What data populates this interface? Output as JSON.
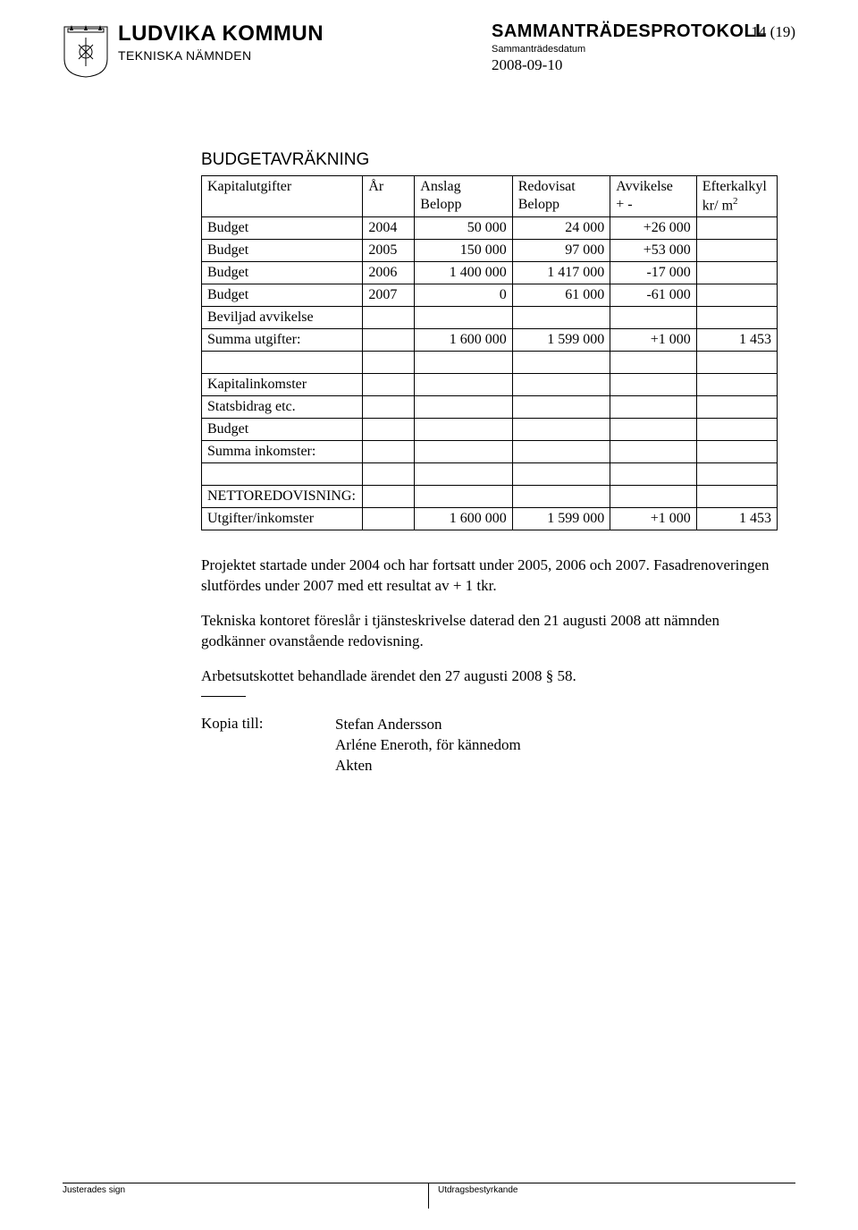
{
  "header": {
    "org_name": "LUDVIKA KOMMUN",
    "dept_name": "TEKNISKA NÄMNDEN",
    "doc_title": "SAMMANTRÄDESPROTOKOLL",
    "doc_subtitle": "Sammanträdesdatum",
    "doc_date": "2008-09-10",
    "page_num": "14 (19)"
  },
  "section_title": "BUDGETAVRÄKNING",
  "table": {
    "headers": {
      "label": "Kapitalutgifter",
      "year": "År",
      "anslag_l1": "Anslag",
      "anslag_l2": "Belopp",
      "redov_l1": "Redovisat",
      "redov_l2": "Belopp",
      "avvik_l1": "Avvikelse",
      "avvik_l2": "+ -",
      "efter_l1": "Efterkalkyl",
      "efter_l2_a": "kr/ m",
      "efter_l2_b": "2"
    },
    "rows": [
      {
        "label": "Budget",
        "year": "2004",
        "anslag": "50 000",
        "redov": "24 000",
        "avvik": "+26 000",
        "efter": ""
      },
      {
        "label": "Budget",
        "year": "2005",
        "anslag": "150 000",
        "redov": "97 000",
        "avvik": "+53 000",
        "efter": ""
      },
      {
        "label": "Budget",
        "year": "2006",
        "anslag": "1 400 000",
        "redov": "1 417 000",
        "avvik": "-17 000",
        "efter": ""
      },
      {
        "label": "Budget",
        "year": "2007",
        "anslag": "0",
        "redov": "61 000",
        "avvik": "-61 000",
        "efter": ""
      },
      {
        "label": "Beviljad avvikelse",
        "year": "",
        "anslag": "",
        "redov": "",
        "avvik": "",
        "efter": ""
      },
      {
        "label": "Summa utgifter:",
        "year": "",
        "anslag": "1 600 000",
        "redov": "1 599 000",
        "avvik": "+1 000",
        "efter": "1 453"
      },
      {
        "label": "",
        "year": "",
        "anslag": "",
        "redov": "",
        "avvik": "",
        "efter": ""
      },
      {
        "label": "Kapitalinkomster",
        "year": "",
        "anslag": "",
        "redov": "",
        "avvik": "",
        "efter": ""
      },
      {
        "label": "Statsbidrag etc.",
        "year": "",
        "anslag": "",
        "redov": "",
        "avvik": "",
        "efter": ""
      },
      {
        "label": "Budget",
        "year": "",
        "anslag": "",
        "redov": "",
        "avvik": "",
        "efter": ""
      },
      {
        "label": "Summa inkomster:",
        "year": "",
        "anslag": "",
        "redov": "",
        "avvik": "",
        "efter": ""
      },
      {
        "label": "",
        "year": "",
        "anslag": "",
        "redov": "",
        "avvik": "",
        "efter": ""
      },
      {
        "label": "NETTOREDOVISNING:",
        "year": "",
        "anslag": "",
        "redov": "",
        "avvik": "",
        "efter": ""
      },
      {
        "label": "Utgifter/inkomster",
        "year": "",
        "anslag": "1 600 000",
        "redov": "1 599 000",
        "avvik": "+1 000",
        "efter": "1 453"
      }
    ]
  },
  "body": {
    "p1": "Projektet startade under 2004 och har fortsatt under 2005, 2006 och 2007. Fasadrenoveringen slutfördes under 2007 med ett resultat av + 1 tkr.",
    "p2": "Tekniska kontoret föreslår i tjänsteskrivelse daterad den 21 augusti 2008 att nämnden godkänner ovanstående redovisning.",
    "p3": "Arbetsutskottet behandlade ärendet den 27 augusti 2008 § 58."
  },
  "kopia": {
    "label": "Kopia till:",
    "items": [
      "Stefan Andersson",
      "Arléne Eneroth, för kännedom",
      "Akten"
    ]
  },
  "footer": {
    "left": "Justerades sign",
    "right": "Utdragsbestyrkande"
  },
  "colors": {
    "text": "#000000",
    "bg": "#ffffff",
    "border": "#000000"
  }
}
